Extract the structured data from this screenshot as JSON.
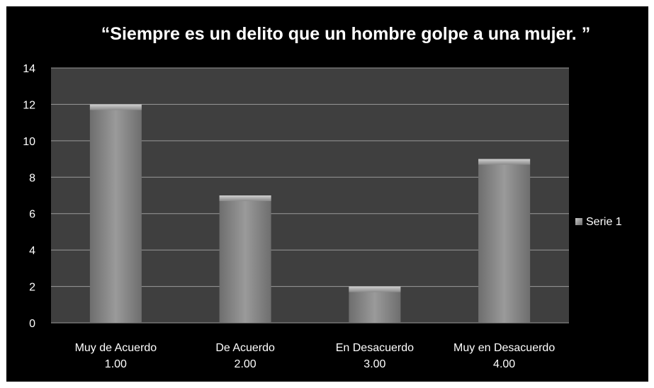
{
  "chart_data": {
    "type": "bar",
    "title": "“Siempre es un delito que un hombre golpe a una mujer. ”",
    "categories": [
      [
        "Muy de Acuerdo",
        "1.00"
      ],
      [
        "De Acuerdo",
        "2.00"
      ],
      [
        "En Desacuerdo",
        "3.00"
      ],
      [
        "Muy en Desacuerdo",
        "4.00"
      ]
    ],
    "series": [
      {
        "name": "Serie 1",
        "values": [
          12,
          7,
          2,
          9
        ]
      }
    ],
    "ylim": [
      0,
      14
    ],
    "yticks": [
      0,
      2,
      4,
      6,
      8,
      10,
      12,
      14
    ],
    "grid": true,
    "legend_position": "right",
    "colors": {
      "background": "#000000",
      "plot_area": "#3f3f3f",
      "gridline": "#9a9a9a",
      "bar": "#8c8c8c",
      "text": "#ffffff"
    }
  }
}
